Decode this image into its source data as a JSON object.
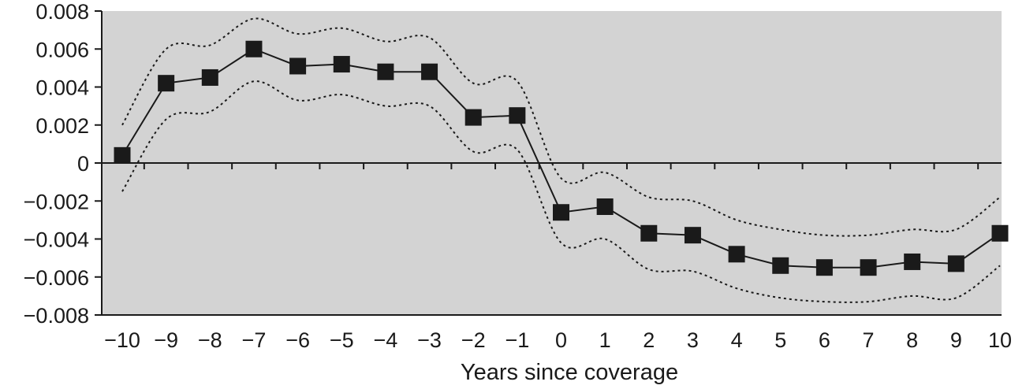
{
  "chart_data": {
    "type": "line",
    "title": "",
    "xlabel": "Years since coverage",
    "ylabel": "",
    "x": [
      -10,
      -9,
      -8,
      -7,
      -6,
      -5,
      -4,
      -3,
      -2,
      -1,
      0,
      1,
      2,
      3,
      4,
      5,
      6,
      7,
      8,
      9,
      10
    ],
    "x_tick_labels": [
      "−10",
      "−9",
      "−8",
      "−7",
      "−6",
      "−5",
      "−4",
      "−3",
      "−2",
      "−1",
      "0",
      "1",
      "2",
      "3",
      "4",
      "5",
      "6",
      "7",
      "8",
      "9",
      "10"
    ],
    "y_ticks": [
      0.008,
      0.006,
      0.004,
      0.002,
      0,
      -0.002,
      -0.004,
      -0.006,
      -0.008
    ],
    "y_tick_labels": [
      "0.008",
      "0.006",
      "0.004",
      "0.002",
      "0",
      "−0.002",
      "−0.004",
      "−0.006",
      "−0.008"
    ],
    "ylim": [
      -0.008,
      0.008
    ],
    "xlim": [
      -10.5,
      10.5
    ],
    "grid": false,
    "series": [
      {
        "style": "solid-square-markers",
        "values": [
          0.0004,
          0.0042,
          0.0045,
          0.006,
          0.0051,
          0.0052,
          0.0048,
          0.0048,
          0.0024,
          0.0025,
          -0.0026,
          -0.0023,
          -0.0037,
          -0.0038,
          -0.0048,
          -0.0054,
          -0.0055,
          -0.0055,
          -0.0052,
          -0.0053,
          -0.0037
        ]
      },
      {
        "style": "dotted-upper-bound",
        "values": [
          0.002,
          0.006,
          0.0062,
          0.0076,
          0.0068,
          0.0071,
          0.0064,
          0.0066,
          0.0042,
          0.0043,
          -0.0008,
          -0.0005,
          -0.0018,
          -0.002,
          -0.003,
          -0.0035,
          -0.0038,
          -0.0038,
          -0.0035,
          -0.0035,
          -0.0018
        ]
      },
      {
        "style": "dotted-lower-bound",
        "values": [
          -0.0015,
          0.0023,
          0.0027,
          0.0043,
          0.0033,
          0.0036,
          0.003,
          0.003,
          0.0006,
          0.0007,
          -0.0042,
          -0.004,
          -0.0056,
          -0.0057,
          -0.0066,
          -0.0071,
          -0.0073,
          -0.0073,
          -0.007,
          -0.0071,
          -0.0054
        ]
      }
    ],
    "colors": {
      "plot_background": "#d3d3d3",
      "line": "#1a1a1a",
      "marker": "#1a1a1a"
    }
  }
}
